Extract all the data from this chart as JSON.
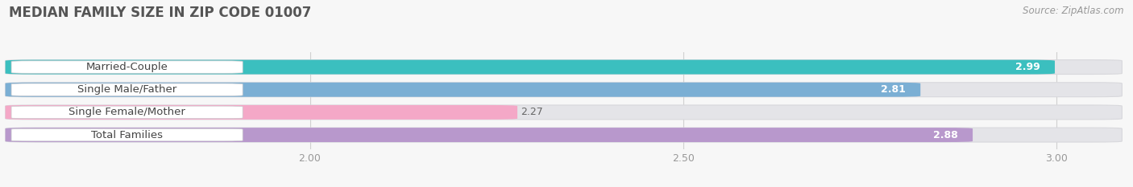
{
  "title": "MEDIAN FAMILY SIZE IN ZIP CODE 01007",
  "source": "Source: ZipAtlas.com",
  "categories": [
    "Married-Couple",
    "Single Male/Father",
    "Single Female/Mother",
    "Total Families"
  ],
  "values": [
    2.99,
    2.81,
    2.27,
    2.88
  ],
  "bar_colors": [
    "#3bbfbf",
    "#7bafd4",
    "#f4a8c7",
    "#b898cc"
  ],
  "xlim_min": 1.6,
  "xlim_max": 3.08,
  "xticks": [
    2.0,
    2.5,
    3.0
  ],
  "background_color": "#f7f7f7",
  "bar_bg_color": "#e4e4e8",
  "title_fontsize": 12,
  "label_fontsize": 9.5,
  "value_fontsize": 9,
  "source_fontsize": 8.5,
  "bar_height": 0.62,
  "label_bg_color": "#ffffff",
  "label_text_color": "#444444",
  "value_text_color_inside": "#ffffff",
  "value_text_color_outside": "#666666",
  "tick_color": "#999999",
  "grid_color": "#d0d0d0"
}
